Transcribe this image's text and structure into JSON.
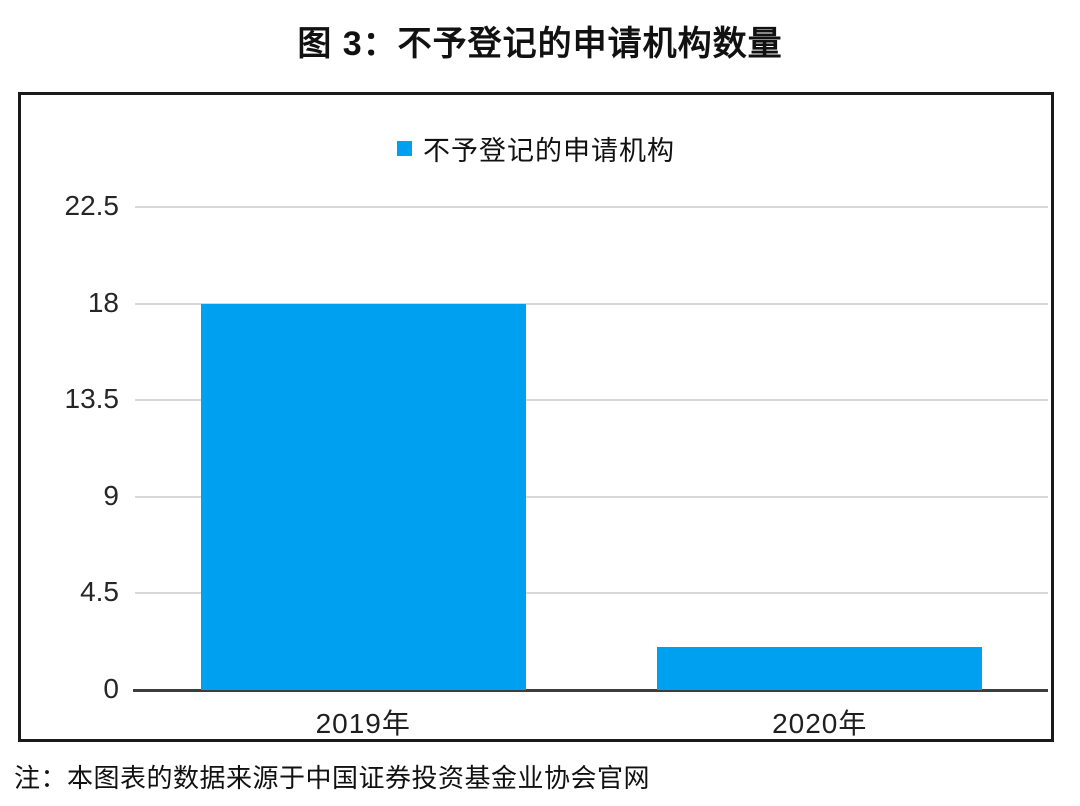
{
  "title": "图 3：不予登记的申请机构数量",
  "note": "注：本图表的数据来源于中国证券投资基金业协会官网",
  "legend": {
    "label": "不予登记的申请机构",
    "swatch_icon": "square-swatch-icon"
  },
  "colors": {
    "bar": "#00A0F0",
    "grid": "#d8d8d8",
    "axis": "#3d3d3d",
    "border": "#1a1a1a",
    "text": "#111111",
    "background": "#ffffff"
  },
  "chart_data": {
    "type": "bar",
    "title": "图 3：不予登记的申请机构数量",
    "categories": [
      "2019年",
      "2020年"
    ],
    "series": [
      {
        "name": "不予登记的申请机构",
        "values": [
          18,
          2
        ],
        "color": "#00A0F0"
      }
    ],
    "xlabel": "",
    "ylabel": "",
    "yticks": [
      0,
      4.5,
      9,
      13.5,
      18,
      22.5
    ],
    "ylim": [
      0,
      22.5
    ],
    "grid": true,
    "legend_position": "top-center",
    "annotation": "注：本图表的数据来源于中国证券投资基金业协会官网"
  }
}
